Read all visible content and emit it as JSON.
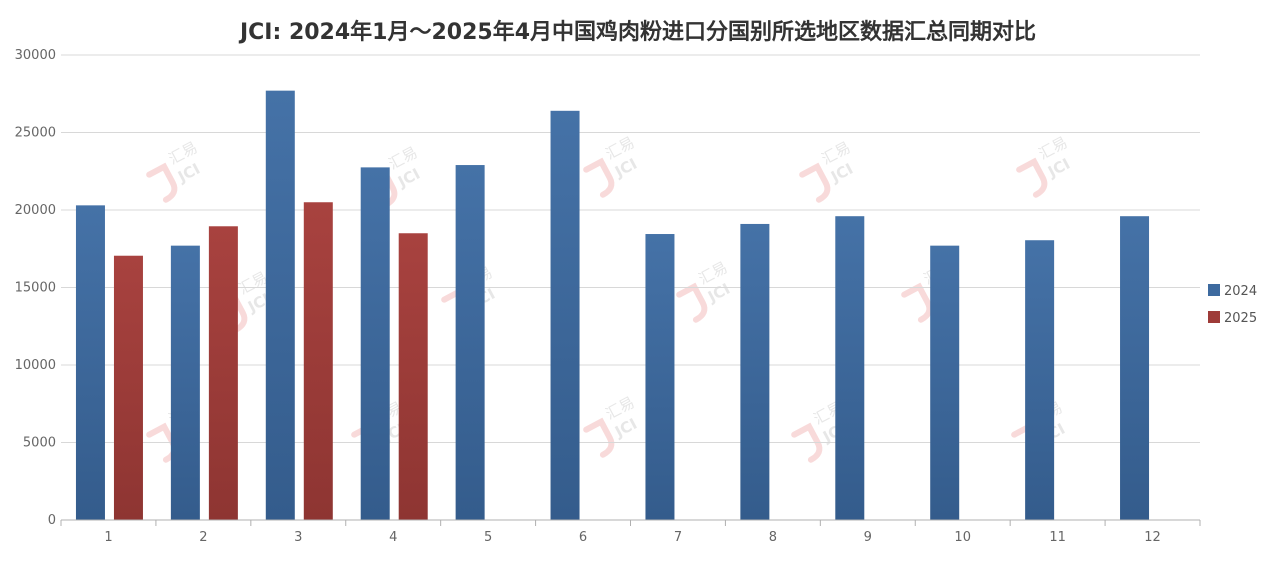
{
  "chart_data": {
    "type": "bar",
    "title": "JCI: 2024年1月～2025年4月中国鸡肉粉进口分国别所选地区数据汇总同期对比",
    "categories": [
      "1",
      "2",
      "3",
      "4",
      "5",
      "6",
      "7",
      "8",
      "9",
      "10",
      "11",
      "12"
    ],
    "series": [
      {
        "name": "2024",
        "color": "#3D6A9F",
        "values": [
          20300,
          17700,
          27700,
          22750,
          22900,
          26400,
          18450,
          19100,
          19600,
          17700,
          18050,
          19600
        ]
      },
      {
        "name": "2025",
        "color": "#9E3B38",
        "values": [
          17050,
          18950,
          20500,
          18500,
          null,
          null,
          null,
          null,
          null,
          null,
          null,
          null
        ]
      }
    ],
    "ylim": [
      0,
      30000
    ],
    "yticks": [
      "0",
      "5000",
      "10000",
      "15000",
      "20000",
      "25000",
      "30000"
    ],
    "grid": true,
    "legend_position": "right"
  },
  "watermark": {
    "brand_cn": "汇易",
    "brand_en": "JCI"
  }
}
